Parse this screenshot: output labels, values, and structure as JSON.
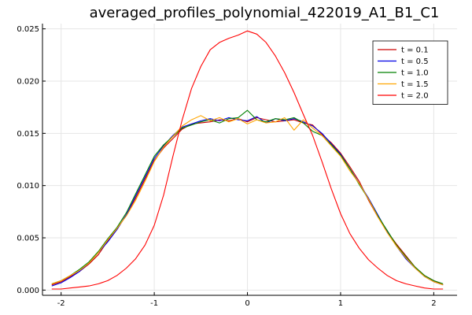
{
  "chart_data": {
    "type": "line",
    "title": "averaged_profiles_polynomial_422019_A1_B1_C1",
    "xlabel": "",
    "ylabel": "",
    "xlim": [
      -2.2,
      2.25
    ],
    "ylim": [
      -0.0005,
      0.0255
    ],
    "x_ticks": [
      {
        "value": -2,
        "label": "-2"
      },
      {
        "value": -1,
        "label": "-1"
      },
      {
        "value": 0,
        "label": "0"
      },
      {
        "value": 1,
        "label": "1"
      },
      {
        "value": 2,
        "label": "2"
      }
    ],
    "y_ticks": [
      {
        "value": 0.0,
        "label": "0.000"
      },
      {
        "value": 0.005,
        "label": "0.005"
      },
      {
        "value": 0.01,
        "label": "0.010"
      },
      {
        "value": 0.015,
        "label": "0.015"
      },
      {
        "value": 0.02,
        "label": "0.020"
      },
      {
        "value": 0.025,
        "label": "0.025"
      }
    ],
    "grid": true,
    "legend_position": "top-right",
    "x": [
      -2.1,
      -2.0,
      -1.9,
      -1.8,
      -1.7,
      -1.6,
      -1.5,
      -1.4,
      -1.3,
      -1.2,
      -1.1,
      -1.0,
      -0.9,
      -0.8,
      -0.7,
      -0.6,
      -0.5,
      -0.4,
      -0.3,
      -0.2,
      -0.1,
      0.0,
      0.1,
      0.2,
      0.3,
      0.4,
      0.5,
      0.6,
      0.7,
      0.8,
      0.9,
      1.0,
      1.1,
      1.2,
      1.3,
      1.4,
      1.5,
      1.6,
      1.7,
      1.8,
      1.9,
      2.0,
      2.1
    ],
    "series": [
      {
        "name": "t = 0.1",
        "color": "#cc0000",
        "values": [
          0.0005,
          0.0008,
          0.0013,
          0.0018,
          0.0025,
          0.0034,
          0.0047,
          0.0058,
          0.0072,
          0.0088,
          0.0106,
          0.0124,
          0.0136,
          0.0145,
          0.0154,
          0.0159,
          0.016,
          0.0161,
          0.0163,
          0.0162,
          0.0164,
          0.0161,
          0.0165,
          0.0163,
          0.0161,
          0.0162,
          0.0163,
          0.016,
          0.0158,
          0.0149,
          0.0141,
          0.0131,
          0.0118,
          0.0104,
          0.0086,
          0.007,
          0.0056,
          0.0044,
          0.0033,
          0.0022,
          0.0014,
          0.0009,
          0.0005
        ]
      },
      {
        "name": "t = 0.5",
        "color": "#0000e6",
        "values": [
          0.0004,
          0.0007,
          0.0012,
          0.0018,
          0.0026,
          0.0036,
          0.0046,
          0.0058,
          0.0072,
          0.009,
          0.0108,
          0.0126,
          0.0138,
          0.0148,
          0.0156,
          0.0159,
          0.0162,
          0.0164,
          0.0162,
          0.0165,
          0.0163,
          0.0162,
          0.0166,
          0.016,
          0.0164,
          0.0162,
          0.0164,
          0.0161,
          0.0157,
          0.015,
          0.014,
          0.013,
          0.0116,
          0.0102,
          0.0088,
          0.0072,
          0.0056,
          0.0042,
          0.003,
          0.0021,
          0.0013,
          0.0008,
          0.0005
        ]
      },
      {
        "name": "t = 1.0",
        "color": "#008000",
        "values": [
          0.0006,
          0.0009,
          0.0014,
          0.002,
          0.0027,
          0.0037,
          0.0049,
          0.006,
          0.0074,
          0.0092,
          0.011,
          0.0128,
          0.0139,
          0.0147,
          0.0155,
          0.0158,
          0.0161,
          0.0163,
          0.016,
          0.0164,
          0.0165,
          0.0172,
          0.0163,
          0.0161,
          0.0164,
          0.0163,
          0.0165,
          0.016,
          0.0152,
          0.0148,
          0.0139,
          0.0129,
          0.0116,
          0.0101,
          0.0087,
          0.0071,
          0.0057,
          0.0043,
          0.0032,
          0.0022,
          0.0014,
          0.0009,
          0.0006
        ]
      },
      {
        "name": "t = 1.5",
        "color": "#ffa500",
        "values": [
          0.0006,
          0.0009,
          0.0014,
          0.0019,
          0.0026,
          0.0036,
          0.0048,
          0.0059,
          0.0071,
          0.0086,
          0.0104,
          0.0123,
          0.0137,
          0.0147,
          0.0157,
          0.0163,
          0.0167,
          0.0162,
          0.0165,
          0.0161,
          0.0164,
          0.0159,
          0.0163,
          0.016,
          0.0161,
          0.0165,
          0.0153,
          0.0163,
          0.0155,
          0.0148,
          0.0138,
          0.0128,
          0.0114,
          0.0102,
          0.0087,
          0.007,
          0.0055,
          0.0042,
          0.0031,
          0.0021,
          0.0013,
          0.0008,
          0.0005
        ]
      },
      {
        "name": "t = 2.0",
        "color": "#ff0000",
        "values": [
          0.0001,
          0.0001,
          0.0002,
          0.0003,
          0.0004,
          0.0006,
          0.0009,
          0.0014,
          0.0021,
          0.003,
          0.0043,
          0.0062,
          0.0091,
          0.0128,
          0.0163,
          0.0193,
          0.0214,
          0.023,
          0.0237,
          0.0241,
          0.0244,
          0.0248,
          0.0245,
          0.0237,
          0.0224,
          0.0208,
          0.0189,
          0.0168,
          0.0148,
          0.0123,
          0.0097,
          0.0073,
          0.0054,
          0.004,
          0.0029,
          0.0021,
          0.0014,
          0.0009,
          0.0006,
          0.0004,
          0.0002,
          0.0001,
          0.0001
        ]
      }
    ]
  }
}
